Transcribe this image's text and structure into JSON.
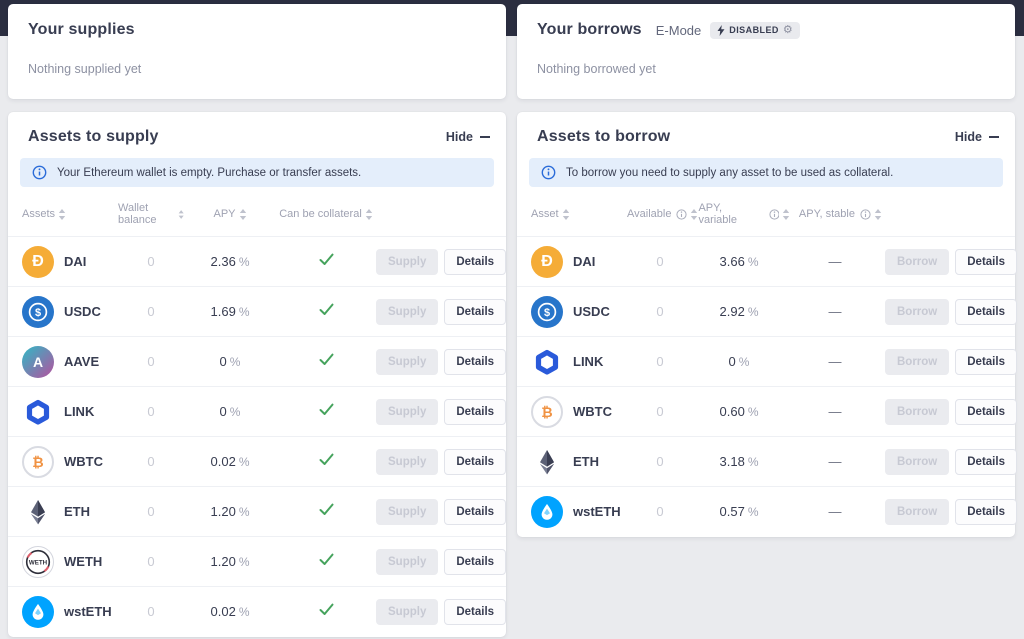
{
  "theme": {
    "topband_color": "#2b2e40",
    "page_bg": "#eaebee",
    "accent_blue": "#2b6cd9",
    "check_green": "#46a35d",
    "notice_bg": "#e4eefb"
  },
  "supplies_summary": {
    "title": "Your supplies",
    "empty_message": "Nothing supplied yet"
  },
  "borrows_summary": {
    "title": "Your borrows",
    "emode_label": "E-Mode",
    "emode_status": "DISABLED",
    "empty_message": "Nothing borrowed yet"
  },
  "assets_to_supply": {
    "title": "Assets to supply",
    "hide_label": "Hide",
    "notice": "Your Ethereum wallet is empty. Purchase or transfer assets.",
    "columns": [
      {
        "label": "Assets",
        "info": false
      },
      {
        "label": "Wallet balance",
        "info": false
      },
      {
        "label": "APY",
        "info": false
      },
      {
        "label": "Can be collateral",
        "info": false
      }
    ],
    "actions": {
      "primary": "Supply",
      "secondary": "Details"
    },
    "rows": [
      {
        "symbol": "DAI",
        "icon": "dai-icon",
        "wallet_balance": "0",
        "apy": "2.36",
        "collateral": true
      },
      {
        "symbol": "USDC",
        "icon": "usdc-icon",
        "wallet_balance": "0",
        "apy": "1.69",
        "collateral": true
      },
      {
        "symbol": "AAVE",
        "icon": "aave-icon",
        "wallet_balance": "0",
        "apy": "0",
        "collateral": true
      },
      {
        "symbol": "LINK",
        "icon": "link-icon",
        "wallet_balance": "0",
        "apy": "0",
        "collateral": true
      },
      {
        "symbol": "WBTC",
        "icon": "wbtc-icon",
        "wallet_balance": "0",
        "apy": "0.02",
        "collateral": true
      },
      {
        "symbol": "ETH",
        "icon": "eth-icon",
        "wallet_balance": "0",
        "apy": "1.20",
        "collateral": true
      },
      {
        "symbol": "WETH",
        "icon": "weth-icon",
        "wallet_balance": "0",
        "apy": "1.20",
        "collateral": true
      },
      {
        "symbol": "wstETH",
        "icon": "wsteth-icon",
        "wallet_balance": "0",
        "apy": "0.02",
        "collateral": true
      }
    ]
  },
  "assets_to_borrow": {
    "title": "Assets to borrow",
    "hide_label": "Hide",
    "notice": "To borrow you need to supply any asset to be used as collateral.",
    "columns": [
      {
        "label": "Asset",
        "info": false
      },
      {
        "label": "Available",
        "info": true
      },
      {
        "label": "APY, variable",
        "info": true
      },
      {
        "label": "APY, stable",
        "info": true
      }
    ],
    "actions": {
      "primary": "Borrow",
      "secondary": "Details"
    },
    "rows": [
      {
        "symbol": "DAI",
        "icon": "dai-icon",
        "available": "0",
        "apy_variable": "3.66",
        "apy_stable": "—"
      },
      {
        "symbol": "USDC",
        "icon": "usdc-icon",
        "available": "0",
        "apy_variable": "2.92",
        "apy_stable": "—"
      },
      {
        "symbol": "LINK",
        "icon": "link-icon",
        "available": "0",
        "apy_variable": "0",
        "apy_stable": "—"
      },
      {
        "symbol": "WBTC",
        "icon": "wbtc-icon",
        "available": "0",
        "apy_variable": "0.60",
        "apy_stable": "—"
      },
      {
        "symbol": "ETH",
        "icon": "eth-icon",
        "available": "0",
        "apy_variable": "3.18",
        "apy_stable": "—"
      },
      {
        "symbol": "wstETH",
        "icon": "wsteth-icon",
        "available": "0",
        "apy_variable": "0.57",
        "apy_stable": "—"
      }
    ]
  }
}
